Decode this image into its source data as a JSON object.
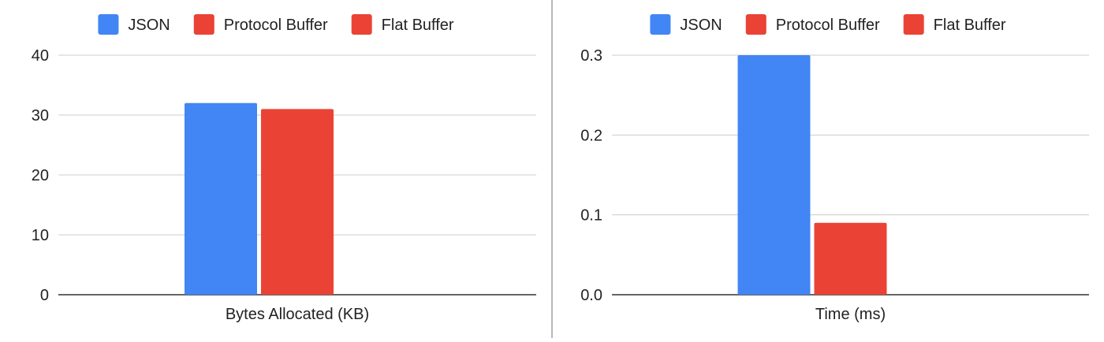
{
  "chart_data": [
    {
      "type": "bar",
      "categories": [
        "Bytes Allocated (KB)"
      ],
      "series": [
        {
          "name": "JSON",
          "values": [
            32
          ],
          "color": "#4285F4"
        },
        {
          "name": "Protocol Buffer",
          "values": [
            31
          ],
          "color": "#EA4335"
        },
        {
          "name": "Flat Buffer",
          "values": [
            0
          ],
          "color": "#EA4335"
        }
      ],
      "xlabel": "Bytes Allocated (KB)",
      "ylabel": "",
      "ylim": [
        0,
        40
      ],
      "yticks": [
        "0",
        "10",
        "20",
        "30",
        "40"
      ],
      "grid": true,
      "legend": "top-center"
    },
    {
      "type": "bar",
      "categories": [
        "Time (ms)"
      ],
      "series": [
        {
          "name": "JSON",
          "values": [
            0.3
          ],
          "color": "#4285F4"
        },
        {
          "name": "Protocol Buffer",
          "values": [
            0.09
          ],
          "color": "#EA4335"
        },
        {
          "name": "Flat Buffer",
          "values": [
            0
          ],
          "color": "#EA4335"
        }
      ],
      "xlabel": "Time (ms)",
      "ylabel": "",
      "ylim": [
        0,
        0.3
      ],
      "yticks": [
        "0.0",
        "0.1",
        "0.2",
        "0.3"
      ],
      "grid": true,
      "legend": "top-center"
    }
  ],
  "colors": {
    "grid": "#cccccc",
    "axis": "#333333",
    "divider": "#888888"
  }
}
